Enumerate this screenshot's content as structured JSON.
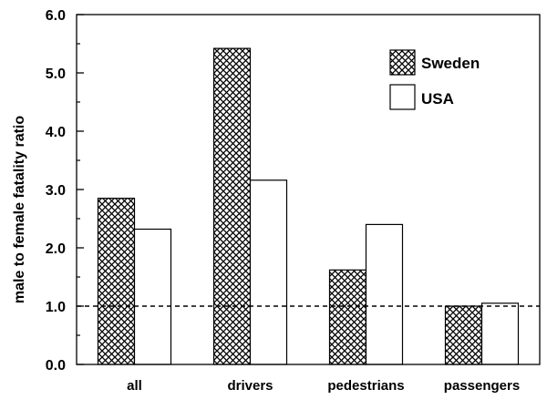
{
  "chart_data": {
    "type": "bar",
    "title": "",
    "xlabel": "",
    "ylabel": "male to female fatality ratio",
    "ylim": [
      0,
      6
    ],
    "yticks": [
      "0.0",
      "1.0",
      "2.0",
      "3.0",
      "4.0",
      "5.0",
      "6.0"
    ],
    "categories": [
      "all",
      "drivers",
      "pedestrians",
      "passengers"
    ],
    "series": [
      {
        "name": "Sweden",
        "values": [
          2.85,
          5.42,
          1.62,
          1.0
        ],
        "fill": "crosshatch"
      },
      {
        "name": "USA",
        "values": [
          2.32,
          3.16,
          2.4,
          1.05
        ],
        "fill": "white"
      }
    ],
    "reference_line": {
      "y": 1.0,
      "style": "dashed"
    },
    "legend_position": "top-right",
    "grid": false,
    "colors": {
      "stroke": "#000000",
      "background": "#ffffff"
    }
  }
}
